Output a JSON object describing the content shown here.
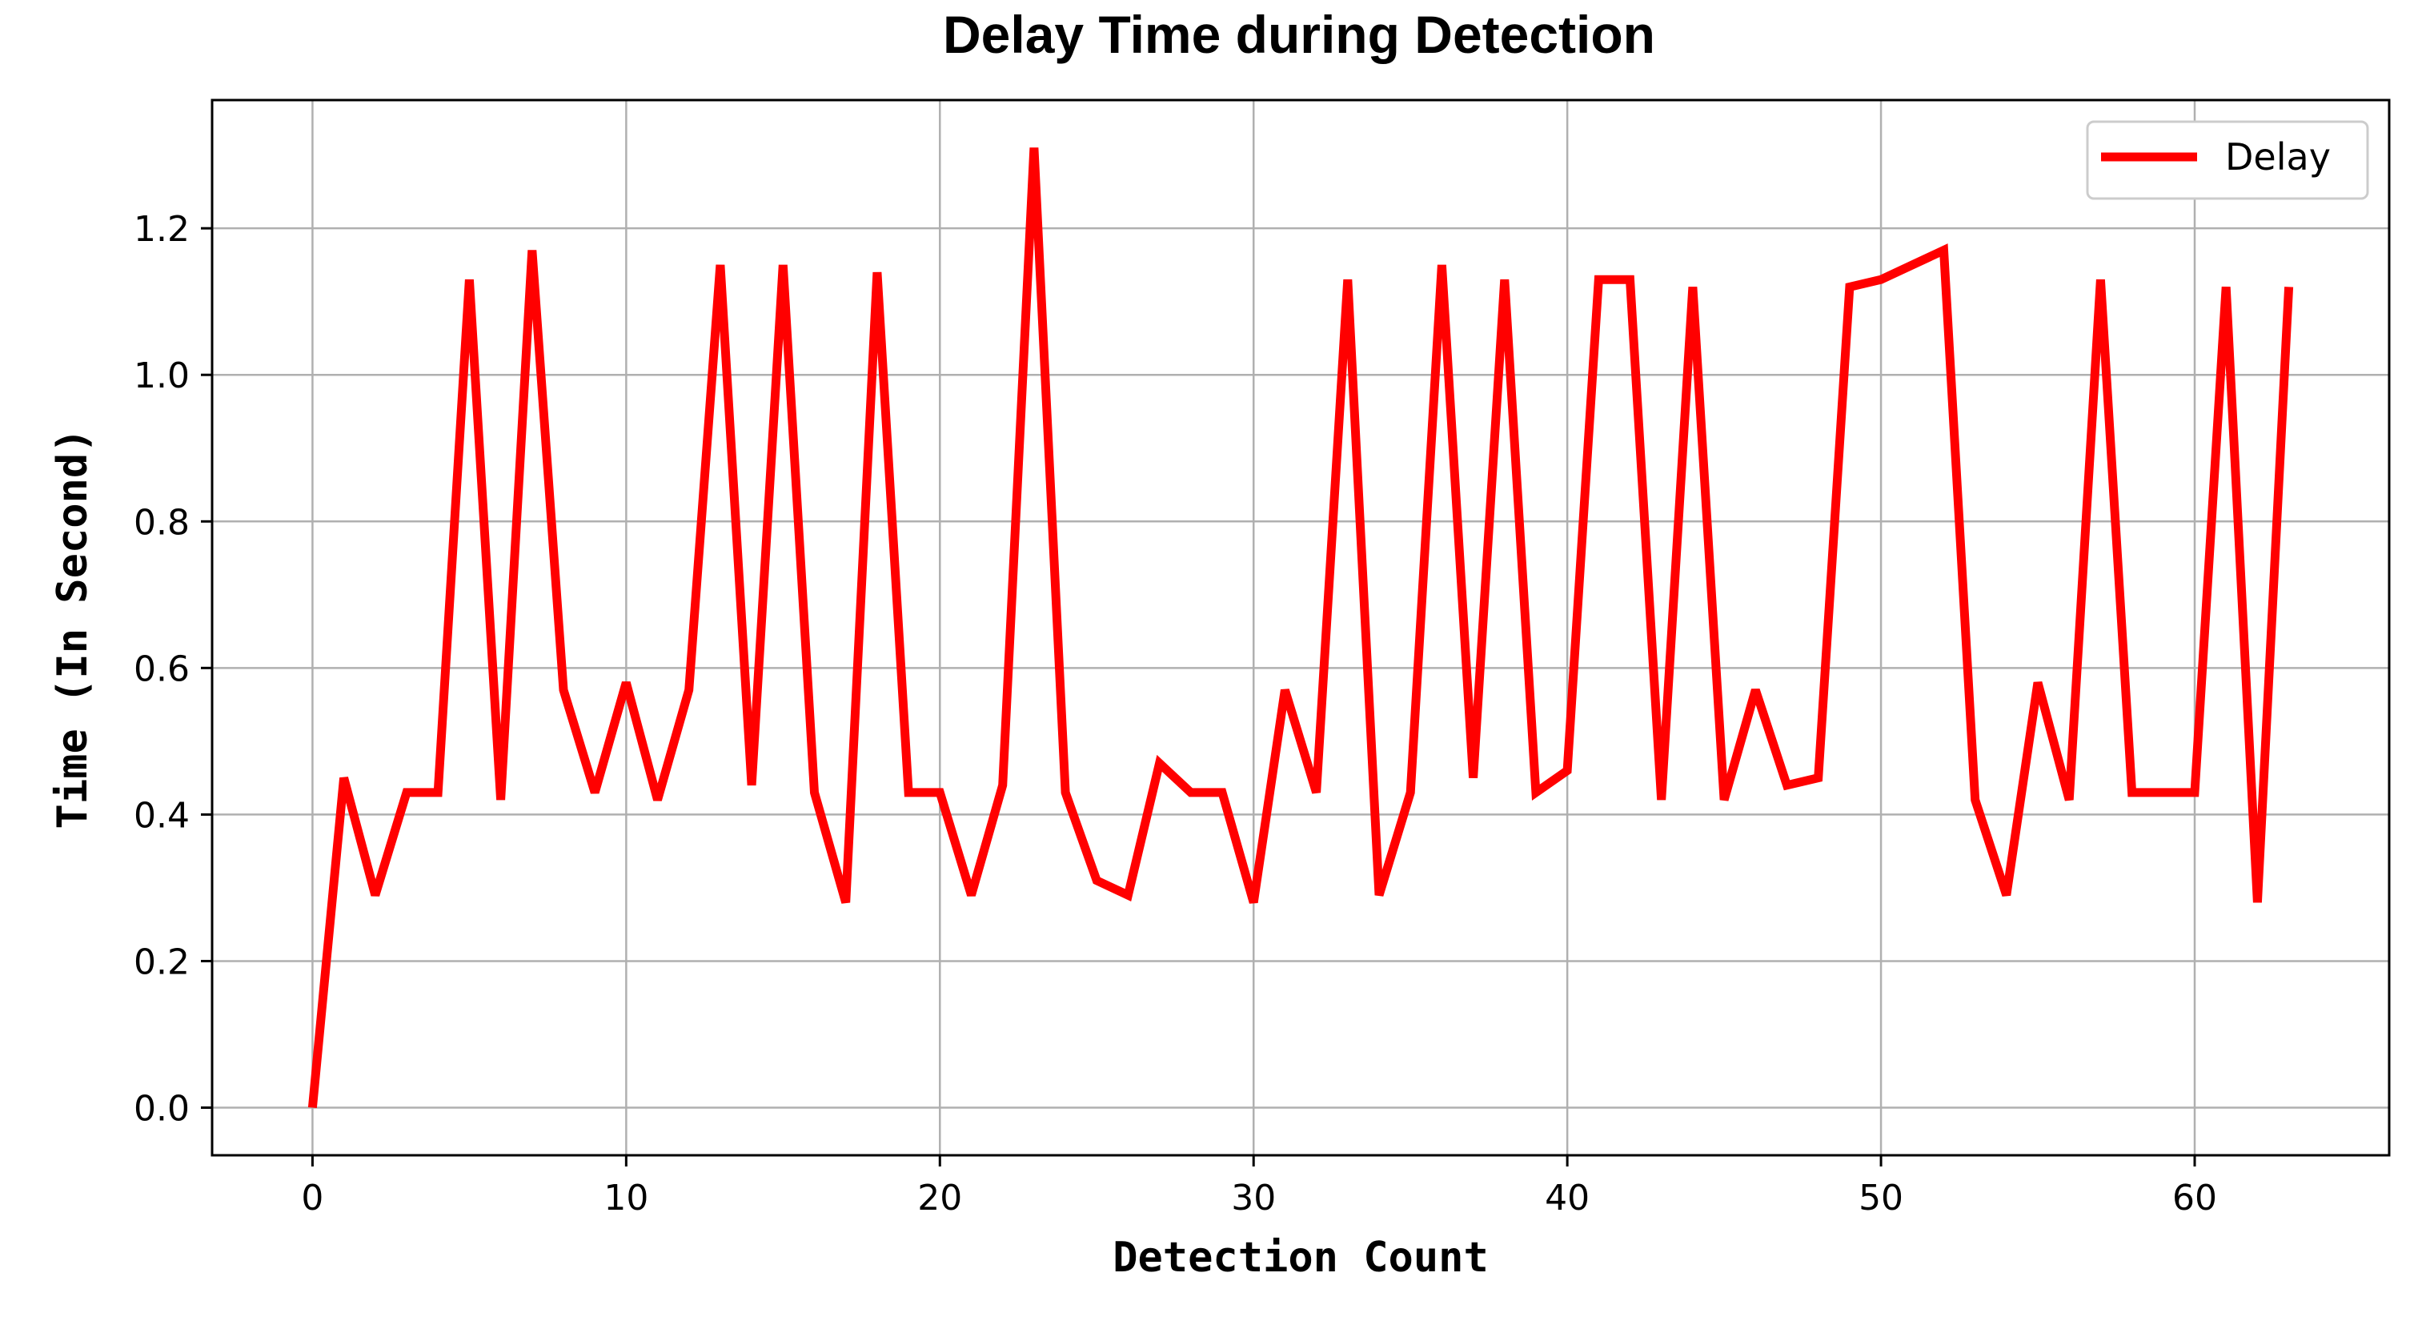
{
  "chart_data": {
    "type": "line",
    "title": "Delay Time during Detection",
    "xlabel": "Detection Count",
    "ylabel": "Time (In Second)",
    "xlim": [
      -3.2,
      66.2
    ],
    "ylim": [
      -0.065,
      1.375
    ],
    "xticks": [
      0,
      10,
      20,
      30,
      40,
      50,
      60
    ],
    "yticks": [
      0.0,
      0.2,
      0.4,
      0.6,
      0.8,
      1.0,
      1.2
    ],
    "xtick_labels": [
      "0",
      "10",
      "20",
      "30",
      "40",
      "50",
      "60"
    ],
    "ytick_labels": [
      "0.0",
      "0.2",
      "0.4",
      "0.6",
      "0.8",
      "1.0",
      "1.2"
    ],
    "grid": true,
    "legend_position": "top-right",
    "series": [
      {
        "name": "Delay",
        "color": "#ff0000",
        "x": [
          0,
          1,
          2,
          3,
          4,
          5,
          6,
          7,
          8,
          9,
          10,
          11,
          12,
          13,
          14,
          15,
          16,
          17,
          18,
          19,
          20,
          21,
          22,
          23,
          24,
          25,
          26,
          27,
          28,
          29,
          30,
          31,
          32,
          33,
          34,
          35,
          36,
          37,
          38,
          39,
          40,
          41,
          42,
          43,
          44,
          45,
          46,
          47,
          48,
          49,
          50,
          51,
          52,
          53,
          54,
          55,
          56,
          57,
          58,
          59,
          60,
          61,
          62,
          63
        ],
        "values": [
          0.0,
          0.45,
          0.29,
          0.43,
          0.43,
          1.13,
          0.42,
          1.17,
          0.57,
          0.43,
          0.58,
          0.42,
          0.57,
          1.15,
          0.44,
          1.15,
          0.43,
          0.28,
          1.14,
          0.43,
          0.43,
          0.29,
          0.44,
          1.31,
          0.43,
          0.31,
          0.29,
          0.47,
          0.43,
          0.43,
          0.28,
          0.57,
          0.43,
          1.13,
          0.29,
          0.43,
          1.15,
          0.45,
          1.13,
          0.43,
          0.46,
          1.13,
          1.13,
          0.42,
          1.12,
          0.42,
          0.57,
          0.44,
          0.45,
          1.12,
          1.13,
          1.15,
          1.17,
          0.42,
          0.29,
          0.58,
          0.42,
          1.13,
          0.43,
          0.43,
          0.43,
          1.12,
          0.28,
          1.12
        ]
      }
    ]
  }
}
